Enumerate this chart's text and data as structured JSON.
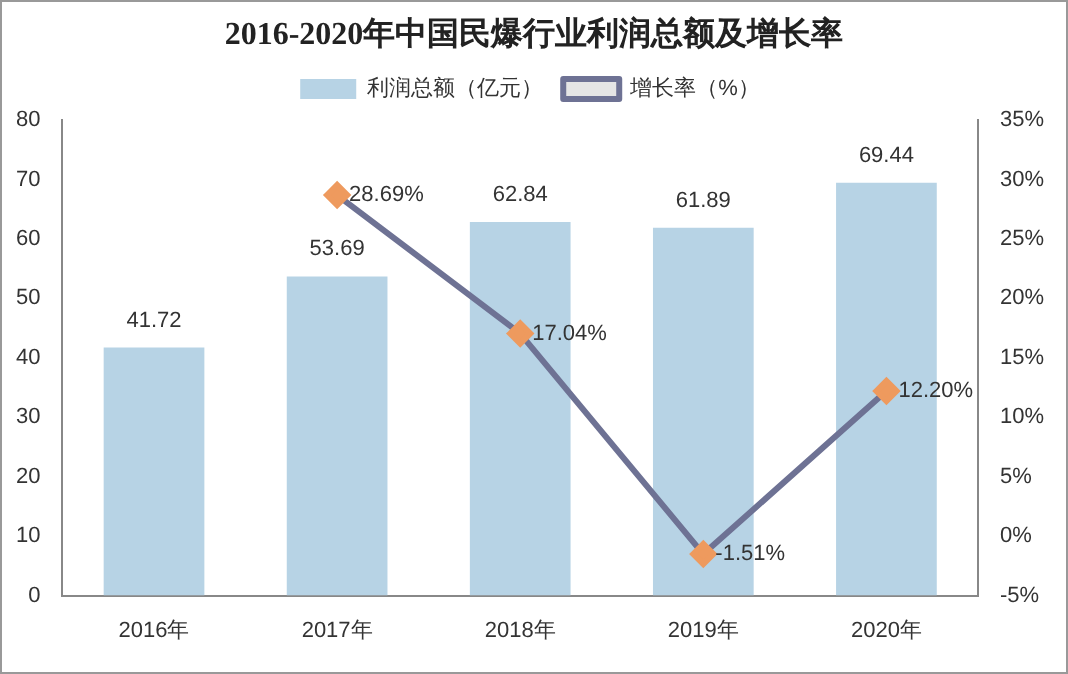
{
  "chart_data": {
    "type": "bar",
    "title": "2016-2020年中国民爆行业利润总额及增长率",
    "categories": [
      "2016年",
      "2017年",
      "2018年",
      "2019年",
      "2020年"
    ],
    "series": [
      {
        "name": "利润总额（亿元）",
        "color": "#b7d3e5",
        "values": [
          41.72,
          53.69,
          62.84,
          61.89,
          69.44
        ],
        "value_labels": [
          "41.72",
          "53.69",
          "62.84",
          "61.89",
          "69.44"
        ]
      },
      {
        "name": "增长率（%）",
        "type": "line",
        "axis": "y2",
        "color": "#6e7294",
        "colors": [
          null,
          "#ee9a5e",
          "#ee9a5e",
          "#ee9a5e",
          "#ee9a5e"
        ],
        "marker": "diamond",
        "line_style": "solid",
        "values": [
          null,
          28.69,
          17.04,
          -1.51,
          12.2
        ],
        "value_labels": [
          null,
          "28.69%",
          "17.04%",
          "-1.51%",
          "12.20%"
        ]
      }
    ],
    "ylim": [
      0,
      80
    ],
    "yticks": [
      0,
      10,
      20,
      30,
      40,
      50,
      60,
      70,
      80
    ],
    "y2lim": [
      -5,
      35
    ],
    "y2ticks": [
      {
        "value": -5,
        "label": "-5%"
      },
      {
        "value": 0,
        "label": "0%"
      },
      {
        "value": 5,
        "label": "5%"
      },
      {
        "value": 10,
        "label": "10%"
      },
      {
        "value": 15,
        "label": "15%"
      },
      {
        "value": 20,
        "label": "20%"
      },
      {
        "value": 25,
        "label": "25%"
      },
      {
        "value": 30,
        "label": "30%"
      },
      {
        "value": 35,
        "label": "35%"
      }
    ],
    "grid": false,
    "legend": "top"
  }
}
